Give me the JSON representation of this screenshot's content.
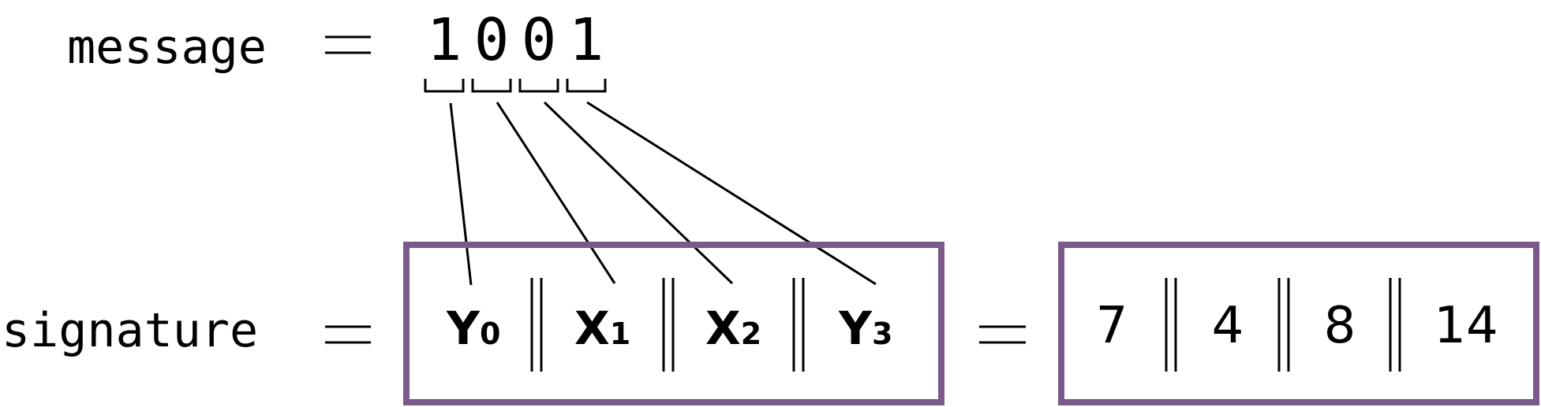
{
  "message_label": "message",
  "signature_label": "signature",
  "equals": "=",
  "message_bits": [
    "1",
    "0",
    "0",
    "1"
  ],
  "signature_parts": [
    {
      "letter": "Y",
      "sub": "0"
    },
    {
      "letter": "X",
      "sub": "1"
    },
    {
      "letter": "X",
      "sub": "2"
    },
    {
      "letter": "Y",
      "sub": "3"
    }
  ],
  "signature_values": [
    "7",
    "4",
    "8",
    "14"
  ],
  "concat_symbol": "||",
  "colors": {
    "box_border": "#7b5a8b",
    "ink": "#000000"
  }
}
